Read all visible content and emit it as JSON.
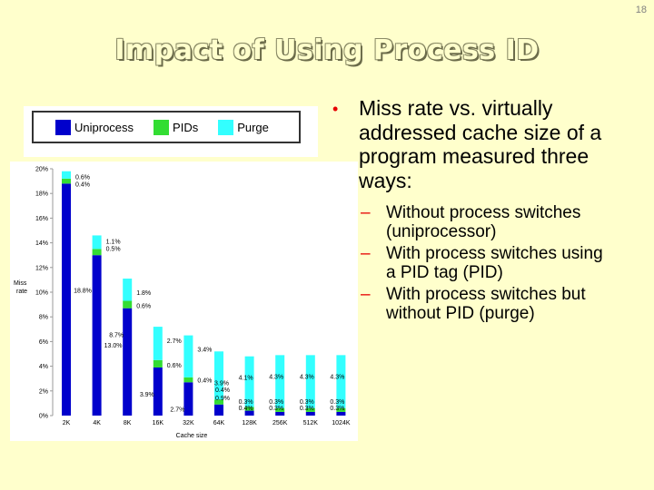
{
  "slide_number": "18",
  "title": "Impact of Using Process ID",
  "bullets": {
    "main": "Miss rate vs. virtually addressed cache size of a program measured three ways:",
    "sub": [
      "Without process switches (uniprocessor)",
      "With process switches using a PID tag (PID)",
      "With process switches but without PID (purge)"
    ]
  },
  "colors": {
    "uniprocess": "#0000cc",
    "pids": "#33dd33",
    "purge": "#33ffff",
    "bullet": "#e60000"
  },
  "chart_data": {
    "type": "bar",
    "stacked": true,
    "categories": [
      "2K",
      "4K",
      "8K",
      "16K",
      "32K",
      "64K",
      "128K",
      "256K",
      "512K",
      "1024K"
    ],
    "series": [
      {
        "name": "Uniprocess",
        "values": [
          18.8,
          13.0,
          8.7,
          3.9,
          2.7,
          0.9,
          0.4,
          0.3,
          0.3,
          0.3
        ],
        "labels": [
          "18.8%",
          "13.0%",
          "8.7%",
          "3.9%",
          "2.7%",
          "0.9%",
          "0.4%",
          "0.3%",
          "0.3%",
          "0.3%"
        ]
      },
      {
        "name": "PIDs",
        "values": [
          0.4,
          0.5,
          0.6,
          0.6,
          0.4,
          0.4,
          0.3,
          0.3,
          0.3,
          0.3
        ],
        "labels": [
          "0.4%",
          "0.5%",
          "0.6%",
          "0.6%",
          "0.4%",
          "0.4%",
          "0.3%",
          "0.3%",
          "0.3%",
          "0.3%"
        ]
      },
      {
        "name": "Purge",
        "values": [
          0.6,
          1.1,
          1.8,
          2.7,
          3.4,
          3.9,
          4.1,
          4.3,
          4.3,
          4.3
        ],
        "labels": [
          "0.6%",
          "1.1%",
          "1.8%",
          "2.7%",
          "3.4%",
          "3.9%",
          "4.1%",
          "4.3%",
          "4.3%",
          "4.3%"
        ]
      }
    ],
    "xlabel": "Cache size",
    "ylabel": "Miss rate",
    "ylim": [
      0,
      20
    ],
    "yticks": [
      "0%",
      "2%",
      "4%",
      "6%",
      "8%",
      "10%",
      "12%",
      "14%",
      "16%",
      "18%",
      "20%"
    ],
    "legend_position": "top"
  }
}
